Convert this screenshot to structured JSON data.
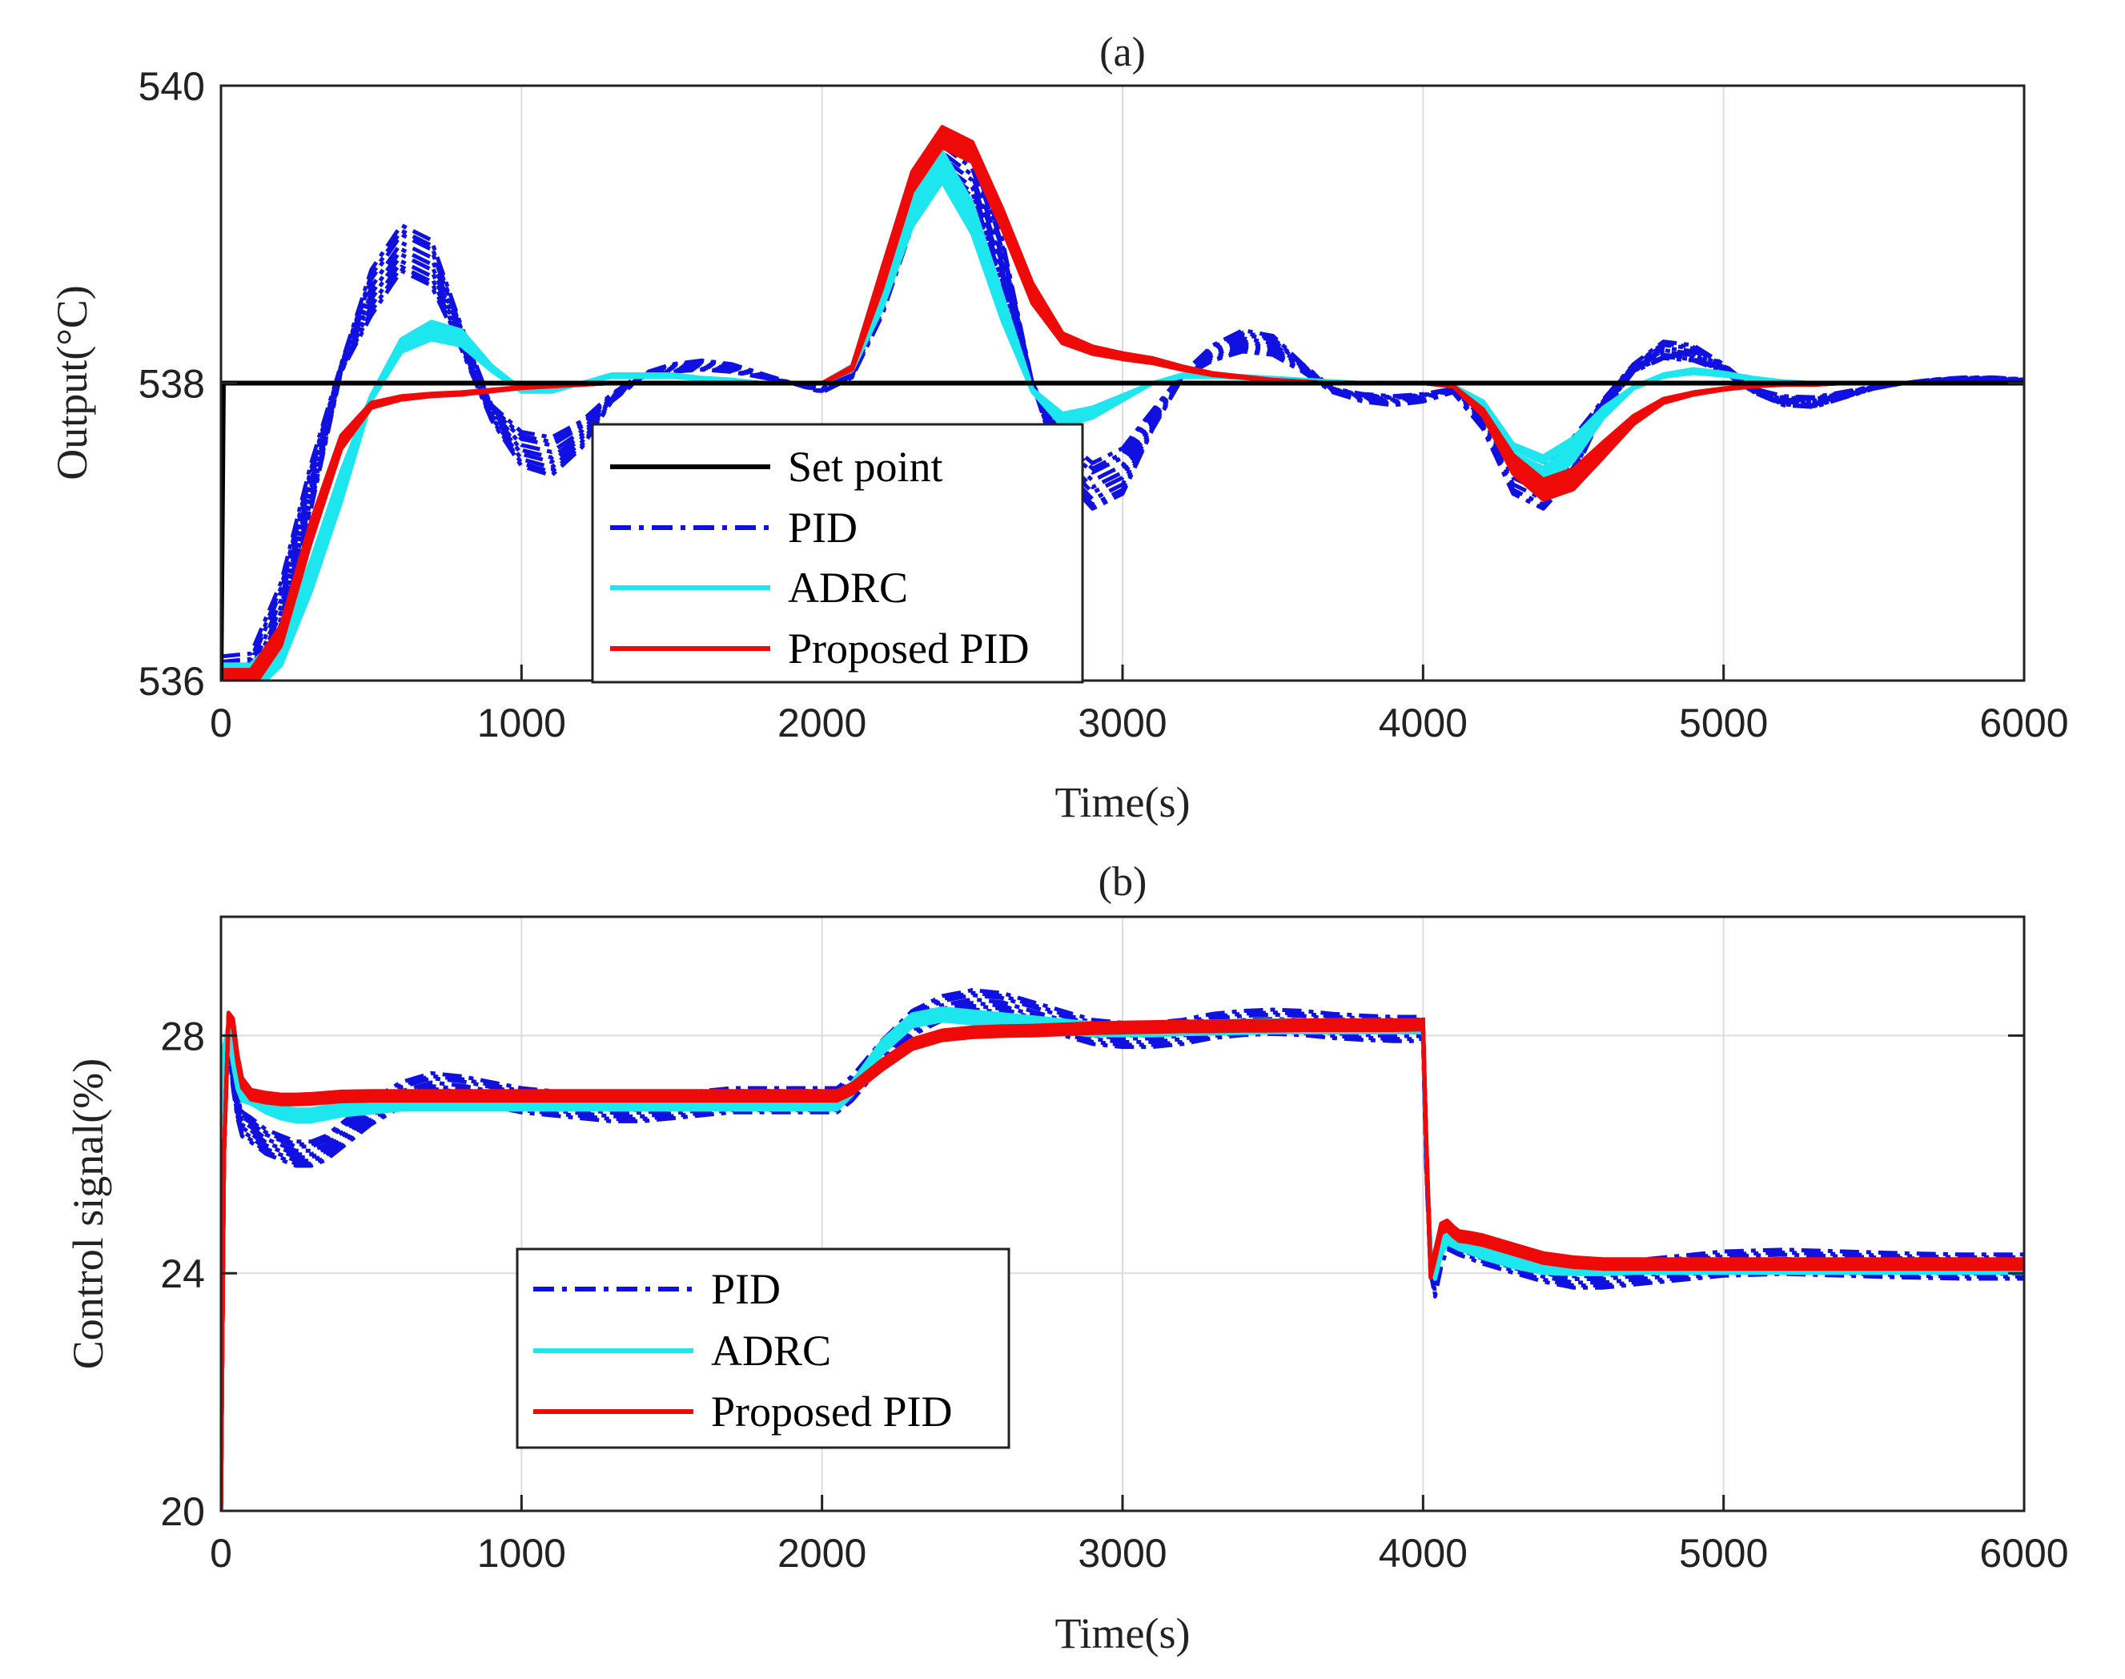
{
  "colors": {
    "setpoint": "#000000",
    "pid": "#1010e0",
    "adrc": "#1ee6ef",
    "proposed": "#ef0a0a",
    "grid": "#dcdcdc",
    "axis": "#222222"
  },
  "chart_data": [
    {
      "id": "a",
      "type": "line",
      "title": "(a)",
      "xlabel": "Time(s)",
      "ylabel": "Output(°C)",
      "xlim": [
        0,
        6000
      ],
      "ylim": [
        536,
        540
      ],
      "xticks": [
        0,
        1000,
        2000,
        3000,
        4000,
        5000,
        6000
      ],
      "yticks": [
        536,
        538,
        540
      ],
      "grid": true,
      "legend_position": "lower-center",
      "legend": [
        "Set point",
        "PID",
        "ADRC",
        "Proposed PID"
      ],
      "x": [
        0,
        100,
        200,
        300,
        400,
        500,
        600,
        700,
        800,
        900,
        1000,
        1100,
        1200,
        1300,
        1400,
        1500,
        1600,
        1700,
        1800,
        1900,
        2000,
        2100,
        2200,
        2300,
        2400,
        2500,
        2600,
        2700,
        2800,
        2900,
        3000,
        3100,
        3200,
        3300,
        3400,
        3500,
        3600,
        3700,
        3800,
        3900,
        4000,
        4100,
        4200,
        4300,
        4400,
        4500,
        4600,
        4700,
        4800,
        4900,
        5000,
        5100,
        5200,
        5300,
        5400,
        5500,
        5600,
        5700,
        5800,
        5900,
        6000
      ],
      "series": [
        {
          "name": "Set point",
          "style": "solid",
          "step_at": 0,
          "from": 536,
          "to": 538
        },
        {
          "name": "PID",
          "style": "dashdot",
          "spread": 0.18,
          "values": [
            536,
            536.02,
            536.5,
            537.3,
            538.1,
            538.6,
            538.9,
            538.8,
            538.3,
            537.8,
            537.55,
            537.5,
            537.65,
            537.9,
            538.05,
            538.1,
            538.12,
            538.1,
            538.05,
            538.0,
            537.95,
            538.05,
            538.6,
            539.2,
            539.55,
            539.4,
            538.8,
            538.0,
            537.5,
            537.3,
            537.4,
            537.75,
            538.05,
            538.2,
            538.28,
            538.25,
            538.1,
            537.95,
            537.9,
            537.88,
            537.9,
            537.95,
            537.75,
            537.4,
            537.3,
            537.5,
            537.85,
            538.1,
            538.22,
            538.2,
            538.1,
            537.95,
            537.88,
            537.87,
            537.92,
            537.97,
            538.0,
            538.02,
            538.03,
            538.03,
            538.02
          ]
        },
        {
          "name": "ADRC",
          "style": "solid",
          "spread": 0.12,
          "values": [
            536,
            536.0,
            536.2,
            536.7,
            537.3,
            537.9,
            538.25,
            538.35,
            538.3,
            538.1,
            537.95,
            537.95,
            538.0,
            538.05,
            538.05,
            538.05,
            538.03,
            538.02,
            538.0,
            538.0,
            538.0,
            538.1,
            538.6,
            539.15,
            539.45,
            539.1,
            538.5,
            537.95,
            537.75,
            537.8,
            537.9,
            538.0,
            538.05,
            538.05,
            538.04,
            538.03,
            538.02,
            538.01,
            538.0,
            538.0,
            538.0,
            537.98,
            537.85,
            537.5,
            537.4,
            537.55,
            537.8,
            537.97,
            538.05,
            538.08,
            538.06,
            538.03,
            538.01,
            538.0,
            538.0,
            538.0,
            538.0,
            538.0,
            538.0,
            538.0,
            538.0
          ]
        },
        {
          "name": "Proposed PID",
          "style": "solid",
          "spread": 0.08,
          "values": [
            536,
            536.0,
            536.3,
            537.0,
            537.6,
            537.85,
            537.9,
            537.92,
            537.93,
            537.95,
            537.97,
            537.98,
            537.99,
            538.0,
            538.0,
            538.0,
            538.0,
            538.0,
            538.0,
            538.0,
            538.0,
            538.1,
            538.7,
            539.35,
            539.65,
            539.55,
            539.1,
            538.6,
            538.3,
            538.22,
            538.18,
            538.15,
            538.1,
            538.06,
            538.04,
            538.02,
            538.01,
            538.0,
            538.0,
            538.0,
            538.0,
            537.98,
            537.8,
            537.45,
            537.28,
            537.35,
            537.55,
            537.75,
            537.88,
            537.93,
            537.96,
            537.98,
            537.99,
            537.99,
            538.0,
            538.0,
            538.0,
            538.0,
            538.0,
            538.0,
            538.0
          ]
        }
      ]
    },
    {
      "id": "b",
      "type": "line",
      "title": "(b)",
      "xlabel": "Time(s)",
      "ylabel": "Control signal(%)",
      "xlim": [
        0,
        6000
      ],
      "ylim": [
        20,
        30
      ],
      "xticks": [
        0,
        1000,
        2000,
        3000,
        4000,
        5000,
        6000
      ],
      "yticks": [
        20,
        24,
        28
      ],
      "grid": true,
      "legend_position": "lower-left",
      "legend": [
        "PID",
        "ADRC",
        "Proposed PID"
      ],
      "x": [
        0,
        10,
        25,
        40,
        55,
        70,
        100,
        150,
        200,
        250,
        300,
        350,
        400,
        500,
        600,
        700,
        800,
        900,
        1000,
        1100,
        1200,
        1300,
        1400,
        1500,
        1600,
        1700,
        1800,
        1900,
        2000,
        2050,
        2100,
        2200,
        2300,
        2400,
        2500,
        2600,
        2700,
        2800,
        2900,
        3000,
        3100,
        3200,
        3300,
        3400,
        3500,
        3600,
        3700,
        3800,
        3900,
        4000,
        4010,
        4025,
        4040,
        4060,
        4080,
        4100,
        4120,
        4150,
        4200,
        4300,
        4400,
        4500,
        4600,
        4700,
        4800,
        4900,
        5000,
        5200,
        5400,
        5600,
        5800,
        6000
      ],
      "series": [
        {
          "name": "PID",
          "style": "dashdot",
          "spread": 0.3,
          "values": [
            20,
            27.6,
            28.0,
            27.3,
            26.8,
            26.5,
            26.4,
            26.2,
            26.1,
            26.0,
            26.0,
            26.1,
            26.3,
            26.7,
            27.0,
            27.15,
            27.1,
            27.0,
            26.9,
            26.85,
            26.8,
            26.75,
            26.75,
            26.8,
            26.85,
            26.9,
            26.9,
            26.9,
            26.9,
            26.9,
            27.1,
            27.7,
            28.2,
            28.45,
            28.55,
            28.5,
            28.35,
            28.2,
            28.05,
            28.0,
            28.0,
            28.05,
            28.15,
            28.2,
            28.22,
            28.2,
            28.15,
            28.12,
            28.1,
            28.1,
            26.0,
            24.2,
            23.8,
            24.3,
            24.6,
            24.55,
            24.5,
            24.45,
            24.35,
            24.2,
            24.05,
            23.95,
            23.95,
            24.0,
            24.05,
            24.1,
            24.15,
            24.18,
            24.15,
            24.12,
            24.1,
            24.1
          ]
        },
        {
          "name": "ADRC",
          "style": "solid",
          "spread": 0.15,
          "values": [
            20,
            27.8,
            28.1,
            27.6,
            27.2,
            27.0,
            26.95,
            26.8,
            26.7,
            26.65,
            26.65,
            26.7,
            26.75,
            26.8,
            26.85,
            26.85,
            26.85,
            26.85,
            26.85,
            26.85,
            26.85,
            26.85,
            26.85,
            26.85,
            26.85,
            26.85,
            26.85,
            26.85,
            26.85,
            26.85,
            27.1,
            27.8,
            28.25,
            28.35,
            28.3,
            28.25,
            28.2,
            28.15,
            28.1,
            28.1,
            28.1,
            28.12,
            28.13,
            28.14,
            28.15,
            28.15,
            28.15,
            28.15,
            28.15,
            28.15,
            26.2,
            24.3,
            24.0,
            24.4,
            24.6,
            24.55,
            24.5,
            24.45,
            24.35,
            24.2,
            24.1,
            24.08,
            24.08,
            24.1,
            24.1,
            24.1,
            24.1,
            24.1,
            24.1,
            24.1,
            24.1,
            24.1
          ]
        },
        {
          "name": "Proposed PID",
          "style": "solid",
          "spread": 0.12,
          "values": [
            20,
            26.0,
            28.3,
            28.2,
            27.6,
            27.2,
            27.0,
            26.95,
            26.92,
            26.92,
            26.93,
            26.95,
            26.97,
            26.98,
            26.98,
            26.98,
            26.98,
            26.98,
            26.98,
            26.98,
            26.98,
            26.98,
            26.98,
            26.98,
            26.98,
            26.98,
            26.98,
            26.98,
            26.98,
            26.98,
            27.1,
            27.5,
            27.85,
            28.0,
            28.05,
            28.07,
            28.08,
            28.1,
            28.12,
            28.13,
            28.14,
            28.15,
            28.15,
            28.16,
            28.16,
            28.17,
            28.17,
            28.17,
            28.17,
            28.18,
            26.3,
            24.0,
            24.3,
            24.75,
            24.8,
            24.7,
            24.62,
            24.6,
            24.55,
            24.4,
            24.25,
            24.18,
            24.15,
            24.15,
            24.15,
            24.15,
            24.15,
            24.15,
            24.15,
            24.15,
            24.15,
            24.15
          ]
        }
      ]
    }
  ]
}
